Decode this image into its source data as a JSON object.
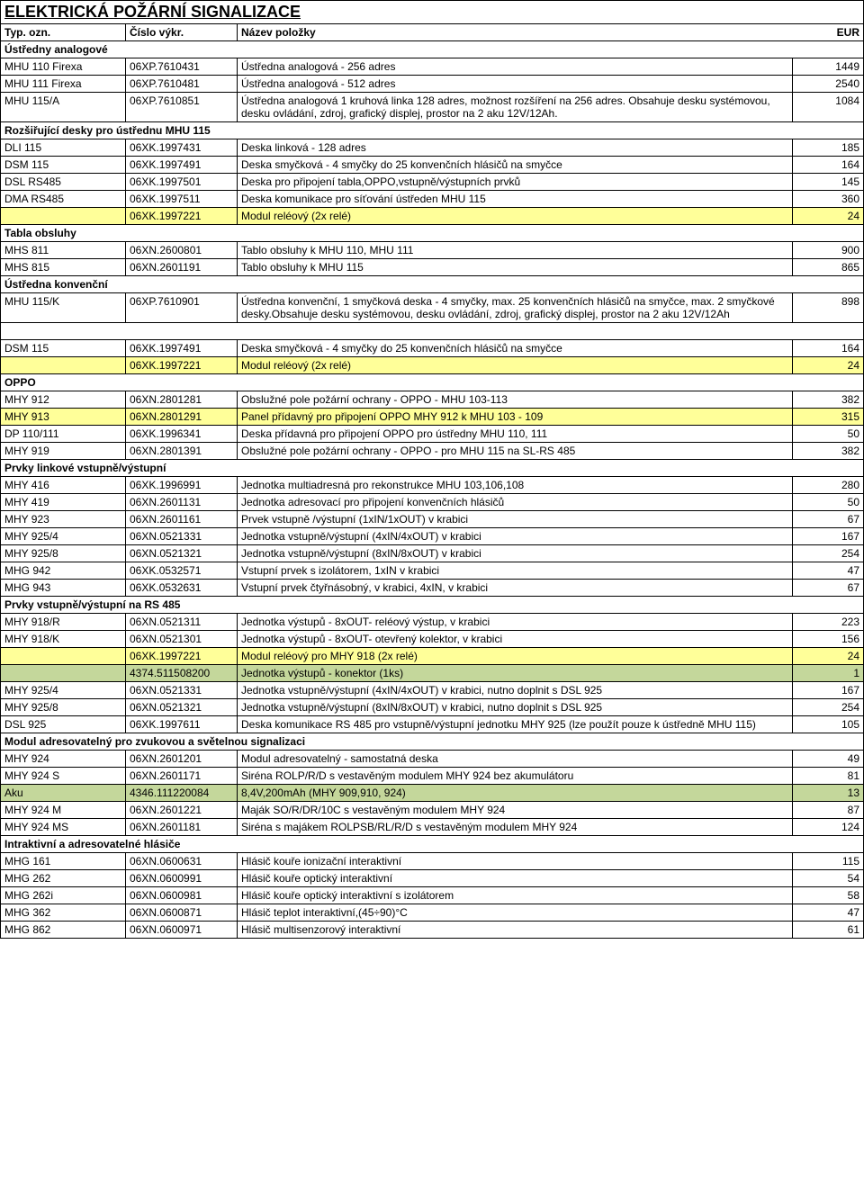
{
  "colors": {
    "highlight_yellow": "#ffff99",
    "highlight_green": "#c4d79b",
    "border": "#000000",
    "bg": "#ffffff"
  },
  "title": "ELEKTRICKÁ POŽÁRNÍ SIGNALIZACE",
  "header": {
    "c1": "Typ. ozn.",
    "c2": "Číslo výkr.",
    "c3": "Název položky",
    "c4": "EUR"
  },
  "sections": {
    "s1": "Ústředny analogové",
    "s2": "Rozšiřující desky pro  ústřednu MHU 115",
    "s3": "Tabla obsluhy",
    "s4": "Ústředna konvenční",
    "s5": "OPPO",
    "s6": "Prvky linkové vstupně/výstupní",
    "s7": "Prvky vstupně/výstupní na RS 485",
    "s8": "Modul adresovatelný pro zvukovou a světelnou signalizaci",
    "s9": "Intraktivní a adresovatelné hlásiče"
  },
  "r": {
    "1": {
      "a": "MHU 110 Firexa",
      "b": "06XP.7610431",
      "c": "Ústředna analogová - 256 adres",
      "d": "1449"
    },
    "2": {
      "a": "MHU 111 Firexa",
      "b": "06XP.7610481",
      "c": "Ústředna analogová - 512 adres",
      "d": "2540"
    },
    "3": {
      "a": "MHU 115/A",
      "b": "06XP.7610851",
      "c": "Ústředna analogová 1 kruhová linka 128 adres, možnost rozšíření na 256 adres. Obsahuje desku systémovou, desku ovládání, zdroj, grafický displej, prostor na 2 aku 12V/12Ah.",
      "d": "1084"
    },
    "4": {
      "a": "DLI 115",
      "b": "06XK.1997431",
      "c": "Deska linková - 128 adres",
      "d": "185"
    },
    "5": {
      "a": "DSM 115",
      "b": "06XK.1997491",
      "c": "Deska smyčková - 4 smyčky do 25 konvenčních hlásičů na smyčce",
      "d": "164"
    },
    "6": {
      "a": "DSL RS485",
      "b": "06XK.1997501",
      "c": "Deska pro připojení tabla,OPPO,vstupně/výstupních prvků",
      "d": "145"
    },
    "7": {
      "a": "DMA RS485",
      "b": "06XK.1997511",
      "c": "Deska komunikace pro síťování ústředen MHU 115",
      "d": "360"
    },
    "8": {
      "a": "",
      "b": "06XK.1997221",
      "c": "Modul reléový (2x relé)",
      "d": "24"
    },
    "9": {
      "a": "MHS 811",
      "b": "06XN.2600801",
      "c": "Tablo obsluhy k MHU 110, MHU 111",
      "d": "900"
    },
    "10": {
      "a": "MHS 815",
      "b": "06XN.2601191",
      "c": "Tablo obsluhy k MHU 115",
      "d": "865"
    },
    "11": {
      "a": "MHU 115/K",
      "b": "06XP.7610901",
      "c": "Ústředna konvenční, 1 smyčková deska - 4 smyčky, max. 25  konvenčních hlásičů na smyčce, max. 2 smyčkové desky.Obsahuje desku systémovou, desku ovládání, zdroj, grafický displej, prostor na 2 aku 12V/12Ah",
      "d": "898"
    },
    "12": {
      "a": "DSM 115",
      "b": "06XK.1997491",
      "c": "Deska smyčková - 4 smyčky do 25 konvenčních hlásičů na smyčce",
      "d": "164"
    },
    "13": {
      "a": "",
      "b": "06XK.1997221",
      "c": "Modul reléový (2x relé)",
      "d": "24"
    },
    "14": {
      "a": "MHY 912",
      "b": "06XN.2801281",
      "c": "Obslužné pole požární ochrany - OPPO - MHU 103-113",
      "d": "382"
    },
    "15": {
      "a": "MHY 913",
      "b": "06XN.2801291",
      "c": "Panel přídavný pro připojení OPPO MHY 912 k MHU 103 - 109",
      "d": "315"
    },
    "16": {
      "a": "DP 110/111",
      "b": "06XK.1996341",
      "c": "Deska přídavná pro připojení OPPO pro ústředny MHU 110, 111",
      "d": "50"
    },
    "17": {
      "a": "MHY 919",
      "b": "06XN.2801391",
      "c": "Obslužné pole požární ochrany - OPPO - pro MHU 115 na SL-RS 485",
      "d": "382"
    },
    "18": {
      "a": "MHY 416",
      "b": "06XK.1996991",
      "c": "Jednotka multiadresná pro rekonstrukce MHU 103,106,108",
      "d": "280"
    },
    "19": {
      "a": "MHY 419",
      "b": "06XN.2601131",
      "c": "Jednotka adresovací pro připojení konvenčních hlásičů",
      "d": "50"
    },
    "20": {
      "a": "MHY 923",
      "b": "06XN.2601161",
      "c": "Prvek vstupně /výstupní (1xIN/1xOUT) v krabici",
      "d": "67"
    },
    "21": {
      "a": "MHY 925/4",
      "b": "06XN.0521331",
      "c": "Jednotka vstupně/výstupní (4xIN/4xOUT) v krabici",
      "d": "167"
    },
    "22": {
      "a": "MHY 925/8",
      "b": "06XN.0521321",
      "c": "Jednotka vstupně/výstupní (8xIN/8xOUT) v krabici",
      "d": "254"
    },
    "23": {
      "a": "MHG 942",
      "b": "06XK.0532571",
      "c": "Vstupní prvek s izolátorem, 1xIN v krabici",
      "d": "47"
    },
    "24": {
      "a": "MHG 943",
      "b": "06XK.0532631",
      "c": "Vstupní prvek čtyřnásobný, v krabici, 4xIN, v krabici",
      "d": "67"
    },
    "25": {
      "a": "MHY 918/R",
      "b": "06XN.0521311",
      "c": "Jednotka výstupů - 8xOUT- reléový výstup, v krabici",
      "d": "223"
    },
    "26": {
      "a": "MHY 918/K",
      "b": "06XN.0521301",
      "c": "Jednotka výstupů - 8xOUT- otevřený kolektor, v krabici",
      "d": "156"
    },
    "27": {
      "a": "",
      "b": "06XK.1997221",
      "c": "Modul reléový pro MHY 918 (2x relé)",
      "d": "24"
    },
    "28": {
      "a": "",
      "b": "4374.511508200",
      "c": "Jednotka výstupů - konektor (1ks)",
      "d": "1"
    },
    "29": {
      "a": "MHY 925/4",
      "b": "06XN.0521331",
      "c": "Jednotka vstupně/výstupní (4xIN/4xOUT) v krabici, nutno doplnit s DSL 925",
      "d": "167"
    },
    "30": {
      "a": "MHY 925/8",
      "b": "06XN.0521321",
      "c": "Jednotka vstupně/výstupní (8xIN/8xOUT) v krabici, nutno doplnit s DSL 925",
      "d": "254"
    },
    "31": {
      "a": "DSL 925",
      "b": "06XK.1997611",
      "c": "Deska komunikace RS 485 pro vstupně/výstupní jednotku MHY 925 (lze použít pouze k ústředně MHU 115)",
      "d": "105"
    },
    "32": {
      "a": "MHY 924",
      "b": "06XN.2601201",
      "c": "Modul adresovatelný - samostatná deska",
      "d": "49"
    },
    "33": {
      "a": "MHY 924 S",
      "b": "06XN.2601171",
      "c": "Siréna ROLP/R/D s vestavěným modulem MHY 924 bez akumulátoru",
      "d": "81"
    },
    "34": {
      "a": "Aku",
      "b": "4346.111220084",
      "c": "8,4V,200mAh (MHY 909,910, 924)",
      "d": "13"
    },
    "35": {
      "a": "MHY 924 M",
      "b": "06XN.2601221",
      "c": "Maják SO/R/DR/10C s vestavěným modulem MHY 924",
      "d": "87"
    },
    "36": {
      "a": "MHY 924 MS",
      "b": "06XN.2601181",
      "c": "Siréna s majákem ROLPSB/RL/R/D s vestavěným modulem MHY 924",
      "d": "124"
    },
    "37": {
      "a": "MHG 161",
      "b": "06XN.0600631",
      "c": "Hlásič kouře ionizační interaktivní",
      "d": "115"
    },
    "38": {
      "a": "MHG 262",
      "b": "06XN.0600991",
      "c": "Hlásič kouře optický interaktivní",
      "d": "54"
    },
    "39": {
      "a": "MHG 262i",
      "b": "06XN.0600981",
      "c": "Hlásič kouře optický interaktivní s izolátorem",
      "d": "58"
    },
    "40": {
      "a": "MHG 362",
      "b": "06XN.0600871",
      "c": "Hlásič teplot interaktivní,(45÷90)°C",
      "d": "47"
    },
    "41": {
      "a": "MHG 862",
      "b": "06XN.0600971",
      "c": "Hlásič multisenzorový interaktivní",
      "d": "61"
    }
  }
}
